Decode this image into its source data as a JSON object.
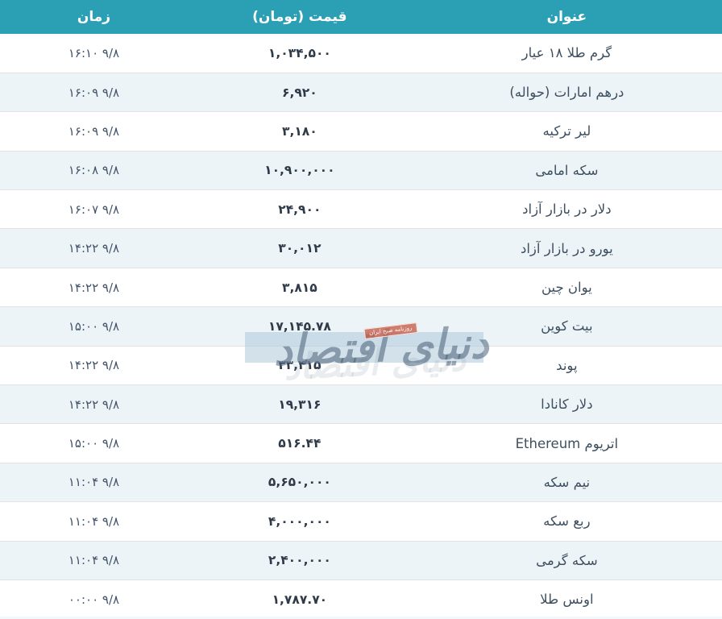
{
  "colors": {
    "header_bg": "#2b9fb3",
    "header_text": "#ffffff",
    "row_alt_bg": "#edf4f8",
    "row_border": "#e2e2e2",
    "title_text": "#3e4f60",
    "price_text": "#2f3b48",
    "time_text": "#42536a",
    "watermark_badge_bg": "#c65c46"
  },
  "table": {
    "headers": {
      "title": "عنوان",
      "price": "قیمت (تومان)",
      "time": "زمان"
    },
    "rows": [
      {
        "title": "گرم طلا ۱۸ عیار",
        "price": "۱,۰۳۴,۵۰۰",
        "time": "۱۶:۱۰ ۹/۸"
      },
      {
        "title": "درهم امارات (حواله)",
        "price": "۶,۹۲۰",
        "time": "۱۶:۰۹ ۹/۸"
      },
      {
        "title": "لیر ترکیه",
        "price": "۳,۱۸۰",
        "time": "۱۶:۰۹ ۹/۸"
      },
      {
        "title": "سکه امامی",
        "price": "۱۰,۹۰۰,۰۰۰",
        "time": "۱۶:۰۸ ۹/۸"
      },
      {
        "title": "دلار در بازار آزاد",
        "price": "۲۴,۹۰۰",
        "time": "۱۶:۰۷ ۹/۸"
      },
      {
        "title": "یورو در بازار آزاد",
        "price": "۳۰,۰۱۲",
        "time": "۱۴:۲۲ ۹/۸"
      },
      {
        "title": "یوان چین",
        "price": "۳,۸۱۵",
        "time": "۱۴:۲۲ ۹/۸"
      },
      {
        "title": "بیت کوین",
        "price": "۱۷,۱۴۵.۷۸",
        "time": "۱۵:۰۰ ۹/۸"
      },
      {
        "title": "پوند",
        "price": "۳۳,۴۱۵",
        "time": "۱۴:۲۲ ۹/۸"
      },
      {
        "title": "دلار کانادا",
        "price": "۱۹,۳۱۶",
        "time": "۱۴:۲۲ ۹/۸"
      },
      {
        "title": "اتریوم Ethereum",
        "price": "۵۱۶.۴۴",
        "time": "۱۵:۰۰ ۹/۸"
      },
      {
        "title": "نیم سکه",
        "price": "۵,۶۵۰,۰۰۰",
        "time": "۱۱:۰۴ ۹/۸"
      },
      {
        "title": "ربع سکه",
        "price": "۴,۰۰۰,۰۰۰",
        "time": "۱۱:۰۴ ۹/۸"
      },
      {
        "title": "سکه گرمی",
        "price": "۲,۴۰۰,۰۰۰",
        "time": "۱۱:۰۴ ۹/۸"
      },
      {
        "title": "اونس طلا",
        "price": "۱,۷۸۷.۷۰",
        "time": "۰۰:۰۰ ۹/۸"
      }
    ]
  },
  "watermark": {
    "brand": "دنیای اقتصاد",
    "badge": "روزنامه صبح ایران"
  }
}
